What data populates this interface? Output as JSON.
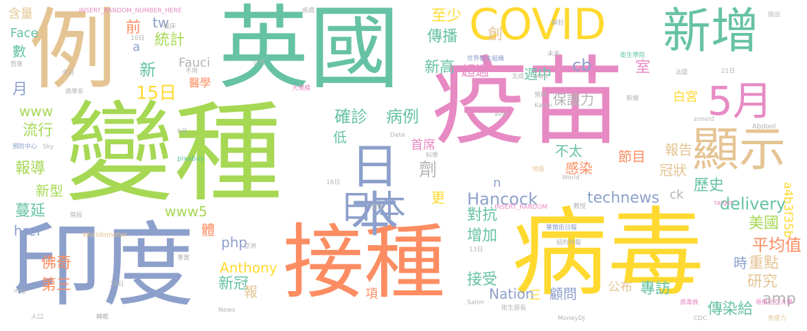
{
  "words": [
    {
      "text": "疫苗",
      "color": "#e78ac3"
    },
    {
      "text": "病毒",
      "color": "#ffd92f"
    },
    {
      "text": "變種",
      "color": "#a6d854"
    },
    {
      "text": "英國",
      "color": "#66c2a5"
    },
    {
      "text": "接種",
      "color": "#fc8d62"
    },
    {
      "text": "印度",
      "color": "#8da0cb"
    },
    {
      "text": "例",
      "color": "#e5c494"
    },
    {
      "text": "COVID",
      "color": "#ffd92f"
    },
    {
      "text": "新增",
      "color": "#66c2a5"
    },
    {
      "text": "日本",
      "color": "#8da0cb"
    },
    {
      "text": "日本",
      "color": "#8da0cb"
    },
    {
      "text": "顯示",
      "color": "#e5c494"
    },
    {
      "text": "5月",
      "color": "#e78ac3"
    },
    {
      "text": "確診",
      "color": "#66c2a5"
    },
    {
      "text": "病例",
      "color": "#66c2a5"
    },
    {
      "text": "15日",
      "color": "#ffd92f"
    },
    {
      "text": "Hancock",
      "color": "#8da0cb"
    },
    {
      "text": "technews",
      "color": "#8da0cb"
    },
    {
      "text": "delivery",
      "color": "#66c2a5"
    },
    {
      "text": "美國",
      "color": "#a6d854"
    },
    {
      "text": "平均值",
      "color": "#fc8d62"
    },
    {
      "text": "a4b3f35b",
      "color": "#ffd92f"
    },
    {
      "text": "Anthony",
      "color": "#ffd92f"
    },
    {
      "text": "佛奇",
      "color": "#fc8d62"
    },
    {
      "text": "第三",
      "color": "#fc8d62"
    },
    {
      "text": "蔓延",
      "color": "#66c2a5"
    },
    {
      "text": "報導",
      "color": "#a6d854"
    },
    {
      "text": "流行",
      "color": "#a6d854"
    },
    {
      "text": "新型",
      "color": "#a6d854"
    },
    {
      "text": "www5",
      "color": "#a6d854"
    },
    {
      "text": "www",
      "color": "#a6d854"
    },
    {
      "text": "href",
      "color": "#8da0cb"
    },
    {
      "text": "php",
      "color": "#8da0cb"
    },
    {
      "text": "新冠",
      "color": "#66c2a5"
    },
    {
      "text": "報",
      "color": "#e5c494"
    },
    {
      "text": "對抗",
      "color": "#66c2a5"
    },
    {
      "text": "增加",
      "color": "#66c2a5"
    },
    {
      "text": "接受",
      "color": "#66c2a5"
    },
    {
      "text": "歷史",
      "color": "#66c2a5"
    },
    {
      "text": "研究",
      "color": "#e5c494"
    },
    {
      "text": "重點",
      "color": "#e5c494"
    },
    {
      "text": "時",
      "color": "#8da0cb"
    },
    {
      "text": "專訪",
      "color": "#66c2a5"
    },
    {
      "text": "amp",
      "color": "#b3b3b3"
    },
    {
      "text": "Nation",
      "color": "#8da0cb"
    },
    {
      "text": "顧問",
      "color": "#8da0cb"
    },
    {
      "text": "公布",
      "color": "#e5c494"
    },
    {
      "text": "傳染給",
      "color": "#66c2a5"
    },
    {
      "text": "至少",
      "color": "#ffd92f"
    },
    {
      "text": "傳播",
      "color": "#66c2a5"
    },
    {
      "text": "創",
      "color": "#e5c494"
    },
    {
      "text": "新高",
      "color": "#66c2a5"
    },
    {
      "text": "超過",
      "color": "#e78ac3"
    },
    {
      "text": "cb",
      "color": "#8da0cb"
    },
    {
      "text": "週中",
      "color": "#66c2a5"
    },
    {
      "text": "保護力",
      "color": "#b3b3b3"
    },
    {
      "text": "白宮",
      "color": "#ffd92f"
    },
    {
      "text": "室",
      "color": "#e78ac3"
    },
    {
      "text": "報告",
      "color": "#e5c494"
    },
    {
      "text": "冠狀",
      "color": "#e5c494"
    },
    {
      "text": "首席",
      "color": "#e78ac3"
    },
    {
      "text": "劑",
      "color": "#b3b3b3"
    },
    {
      "text": "節目",
      "color": "#fc8d62"
    },
    {
      "text": "感染",
      "color": "#fc8d62"
    },
    {
      "text": "不太",
      "color": "#66c2a5"
    },
    {
      "text": "ck",
      "color": "#b3b3b3"
    },
    {
      "text": "統計",
      "color": "#a6d854"
    },
    {
      "text": "tw",
      "color": "#8da0cb"
    },
    {
      "text": "Fauci",
      "color": "#b3b3b3"
    },
    {
      "text": "醫學",
      "color": "#fc8d62"
    },
    {
      "text": "新",
      "color": "#66c2a5"
    },
    {
      "text": "前",
      "color": "#fc8d62"
    },
    {
      "text": "a",
      "color": "#8da0cb"
    },
    {
      "text": "Face",
      "color": "#66c2a5"
    },
    {
      "text": "含量",
      "color": "#e5c494"
    },
    {
      "text": "數",
      "color": "#66c2a5"
    },
    {
      "text": "月",
      "color": "#8da0cb"
    },
    {
      "text": "更",
      "color": "#ffd92f"
    },
    {
      "text": "低",
      "color": "#66c2a5"
    },
    {
      "text": "n",
      "color": "#8da0cb"
    },
    {
      "text": "體",
      "color": "#fc8d62"
    },
    {
      "text": "項",
      "color": "#fc8d62"
    },
    {
      "text": "三",
      "color": "#ffd92f"
    },
    {
      "text": "INSERT_RANDOM_NUMBER_HERE",
      "color": "#e78ac3"
    },
    {
      "text": "INSERT_RANDOM",
      "color": "#e78ac3"
    },
    {
      "text": "世界衛生組織",
      "color": "#8da0cb"
    },
    {
      "text": "解封",
      "color": "#b3b3b3"
    },
    {
      "text": "指出",
      "color": "#b3b3b3"
    },
    {
      "text": "衛生學院",
      "color": "#66c2a5"
    },
    {
      "text": "病毒株",
      "color": "#e78ac3"
    },
    {
      "text": "Worldometer",
      "color": "#e5c494"
    },
    {
      "text": "Abdool",
      "color": "#b3b3b3"
    },
    {
      "text": "MoneyDJ",
      "color": "#b3b3b3"
    },
    {
      "text": "CDC",
      "color": "#b3b3b3"
    },
    {
      "text": "免疫力",
      "color": "#e5c494"
    },
    {
      "text": "哥倫比亞大學",
      "color": "#e78ac3"
    },
    {
      "text": "衛生部長",
      "color": "#b3b3b3"
    },
    {
      "text": "華爾街日報",
      "color": "#8da0cb"
    },
    {
      "text": "紐約時報",
      "color": "#b3b3b3"
    },
    {
      "text": "大規模",
      "color": "#e78ac3"
    },
    {
      "text": "預防中心",
      "color": "#8da0cb"
    },
    {
      "text": "pixabay",
      "color": "#66c2a5"
    },
    {
      "text": "zoneid",
      "color": "#b3b3b3"
    },
    {
      "text": "World",
      "color": "#b3b3b3"
    },
    {
      "text": "target",
      "color": "#e78ac3"
    },
    {
      "text": "Karim",
      "color": "#b3b3b3"
    },
    {
      "text": "Salim",
      "color": "#b3b3b3"
    },
    {
      "text": "Matt",
      "color": "#b3b3b3"
    },
    {
      "text": "News",
      "color": "#b3b3b3"
    },
    {
      "text": "Sky",
      "color": "#b3b3b3"
    },
    {
      "text": "img",
      "color": "#b3b3b3"
    },
    {
      "text": "avw",
      "color": "#b3b3b3"
    },
    {
      "text": "_blank",
      "color": "#e78ac3"
    },
    {
      "text": "Data",
      "color": "#b3b3b3"
    },
    {
      "text": "病學系",
      "color": "#b3b3b3"
    },
    {
      "text": "疾病",
      "color": "#b3b3b3"
    },
    {
      "text": "公共",
      "color": "#b3b3b3"
    },
    {
      "text": "人口",
      "color": "#b3b3b3"
    },
    {
      "text": "轉載",
      "color": "#b3b3b3"
    },
    {
      "text": "全球",
      "color": "#b3b3b3"
    },
    {
      "text": "亞洲",
      "color": "#b3b3b3"
    },
    {
      "text": "事實",
      "color": "#b3b3b3"
    },
    {
      "text": "階段",
      "color": "#b3b3b3"
    },
    {
      "text": "新聞",
      "color": "#b3b3b3"
    },
    {
      "text": "首度",
      "color": "#b3b3b3"
    },
    {
      "text": "今日",
      "color": "#b3b3b3"
    },
    {
      "text": "不用",
      "color": "#b3b3b3"
    },
    {
      "text": "臨床",
      "color": "#b3b3b3"
    },
    {
      "text": "法國",
      "color": "#b3b3b3"
    },
    {
      "text": "五成",
      "color": "#b3b3b3"
    },
    {
      "text": "未來",
      "color": "#b3b3b3"
    },
    {
      "text": "預期",
      "color": "#b3b3b3"
    },
    {
      "text": "地區",
      "color": "#e5c494"
    },
    {
      "text": "科學",
      "color": "#b3b3b3"
    },
    {
      "text": "教授",
      "color": "#b3b3b3"
    },
    {
      "text": "10日",
      "color": "#b3b3b3"
    },
    {
      "text": "12日",
      "color": "#b3b3b3"
    },
    {
      "text": "13日",
      "color": "#b3b3b3"
    },
    {
      "text": "16日",
      "color": "#b3b3b3"
    },
    {
      "text": "21日",
      "color": "#b3b3b3"
    },
    {
      "text": "6月",
      "color": "#b3b3b3"
    }
  ]
}
